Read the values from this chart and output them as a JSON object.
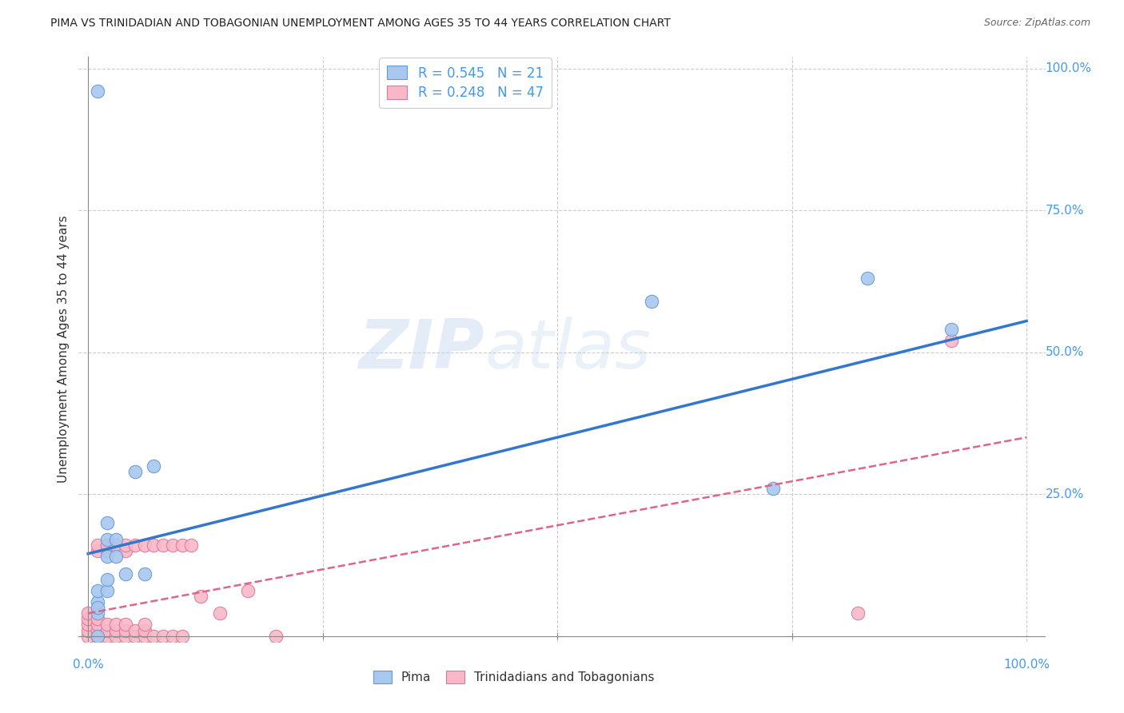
{
  "title": "PIMA VS TRINIDADIAN AND TOBAGONIAN UNEMPLOYMENT AMONG AGES 35 TO 44 YEARS CORRELATION CHART",
  "source": "Source: ZipAtlas.com",
  "ylabel": "Unemployment Among Ages 35 to 44 years",
  "xlim": [
    -0.01,
    1.02
  ],
  "ylim": [
    -0.01,
    1.02
  ],
  "pima_color": "#a8c8f0",
  "pima_edge_color": "#6699cc",
  "trini_color": "#f8b8c8",
  "trini_edge_color": "#dd7799",
  "pima_line_color": "#3377cc",
  "trini_line_color": "#dd6688",
  "tick_color": "#4499ee",
  "pima_R": 0.545,
  "pima_N": 21,
  "trini_R": 0.248,
  "trini_N": 47,
  "watermark_zip": "ZIP",
  "watermark_atlas": "atlas",
  "pima_scatter_x": [
    0.01,
    0.01,
    0.01,
    0.01,
    0.01,
    0.02,
    0.02,
    0.02,
    0.02,
    0.02,
    0.03,
    0.03,
    0.04,
    0.05,
    0.06,
    0.07,
    0.01,
    0.6,
    0.73,
    0.83,
    0.92
  ],
  "pima_scatter_y": [
    0.0,
    0.04,
    0.06,
    0.08,
    0.05,
    0.14,
    0.17,
    0.2,
    0.08,
    0.1,
    0.14,
    0.17,
    0.11,
    0.29,
    0.11,
    0.3,
    0.96,
    0.59,
    0.26,
    0.63,
    0.54
  ],
  "trini_scatter_x": [
    0.0,
    0.0,
    0.0,
    0.0,
    0.0,
    0.01,
    0.01,
    0.01,
    0.01,
    0.01,
    0.01,
    0.02,
    0.02,
    0.02,
    0.02,
    0.02,
    0.03,
    0.03,
    0.03,
    0.03,
    0.04,
    0.04,
    0.04,
    0.04,
    0.04,
    0.05,
    0.05,
    0.05,
    0.06,
    0.06,
    0.06,
    0.06,
    0.07,
    0.07,
    0.08,
    0.08,
    0.09,
    0.09,
    0.1,
    0.1,
    0.11,
    0.12,
    0.14,
    0.17,
    0.2,
    0.82,
    0.92
  ],
  "trini_scatter_y": [
    0.0,
    0.01,
    0.02,
    0.03,
    0.04,
    0.0,
    0.01,
    0.02,
    0.03,
    0.15,
    0.16,
    0.0,
    0.01,
    0.02,
    0.15,
    0.16,
    0.0,
    0.01,
    0.02,
    0.16,
    0.0,
    0.01,
    0.02,
    0.15,
    0.16,
    0.0,
    0.01,
    0.16,
    0.0,
    0.01,
    0.02,
    0.16,
    0.0,
    0.16,
    0.0,
    0.16,
    0.0,
    0.16,
    0.0,
    0.16,
    0.16,
    0.07,
    0.04,
    0.08,
    0.0,
    0.04,
    0.52
  ],
  "pima_line_x0": 0.0,
  "pima_line_y0": 0.145,
  "pima_line_x1": 1.0,
  "pima_line_y1": 0.555,
  "trini_line_x0": 0.0,
  "trini_line_y0": 0.04,
  "trini_line_x1": 1.0,
  "trini_line_y1": 0.35,
  "marker_size": 140
}
